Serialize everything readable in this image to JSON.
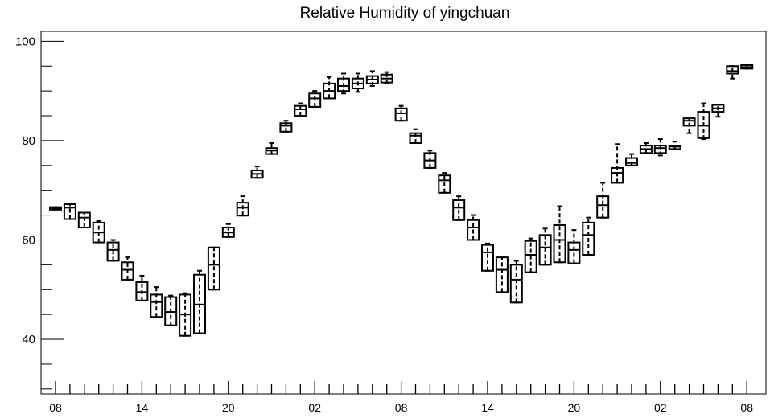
{
  "chart_data": {
    "type": "box",
    "title": "Relative Humidity of yingchuan",
    "xlabel": "",
    "ylabel": "",
    "ylim": [
      29,
      102
    ],
    "yticks": [
      40,
      60,
      80,
      100
    ],
    "x_tick_labels": [
      "08",
      "14",
      "20",
      "02",
      "08",
      "14",
      "20",
      "02",
      "08"
    ],
    "x_tick_label_steps": [
      0,
      6,
      12,
      18,
      24,
      30,
      36,
      42,
      48
    ],
    "step_hours": 1,
    "boxes": [
      {
        "step": 0,
        "whislo": 66.1,
        "q1": 66.1,
        "med": 66.3,
        "q3": 66.6,
        "whishi": 66.6
      },
      {
        "step": 1,
        "whislo": 64.2,
        "q1": 64.2,
        "med": 66.5,
        "q3": 67.2,
        "whishi": 67.2
      },
      {
        "step": 2,
        "whislo": 62.5,
        "q1": 62.5,
        "med": 64.5,
        "q3": 65.5,
        "whishi": 65.5
      },
      {
        "step": 3,
        "whislo": 59.5,
        "q1": 59.5,
        "med": 61.5,
        "q3": 63.5,
        "whishi": 63.8
      },
      {
        "step": 4,
        "whislo": 55.8,
        "q1": 55.8,
        "med": 58.0,
        "q3": 59.5,
        "whishi": 60.0
      },
      {
        "step": 5,
        "whislo": 52.0,
        "q1": 52.0,
        "med": 54.0,
        "q3": 55.5,
        "whishi": 56.5
      },
      {
        "step": 6,
        "whislo": 47.8,
        "q1": 47.8,
        "med": 49.5,
        "q3": 51.5,
        "whishi": 52.8
      },
      {
        "step": 7,
        "whislo": 44.5,
        "q1": 44.5,
        "med": 47.5,
        "q3": 49.0,
        "whishi": 50.5
      },
      {
        "step": 8,
        "whislo": 42.8,
        "q1": 42.8,
        "med": 45.5,
        "q3": 48.5,
        "whishi": 48.8
      },
      {
        "step": 9,
        "whislo": 40.7,
        "q1": 40.7,
        "med": 45.0,
        "q3": 49.0,
        "whishi": 49.3
      },
      {
        "step": 10,
        "whislo": 41.2,
        "q1": 41.2,
        "med": 47.0,
        "q3": 53.0,
        "whishi": 53.8
      },
      {
        "step": 11,
        "whislo": 50.0,
        "q1": 50.0,
        "med": 55.0,
        "q3": 58.5,
        "whishi": 58.5
      },
      {
        "step": 12,
        "whislo": 60.6,
        "q1": 60.6,
        "med": 61.5,
        "q3": 62.5,
        "whishi": 63.2
      },
      {
        "step": 13,
        "whislo": 64.9,
        "q1": 64.9,
        "med": 66.5,
        "q3": 67.5,
        "whishi": 68.8
      },
      {
        "step": 14,
        "whislo": 72.5,
        "q1": 72.5,
        "med": 73.3,
        "q3": 74.0,
        "whishi": 74.8
      },
      {
        "step": 15,
        "whislo": 77.3,
        "q1": 77.3,
        "med": 78.0,
        "q3": 78.5,
        "whishi": 79.5
      },
      {
        "step": 16,
        "whislo": 81.8,
        "q1": 81.8,
        "med": 83.0,
        "q3": 83.5,
        "whishi": 84.0
      },
      {
        "step": 17,
        "whislo": 85.0,
        "q1": 85.0,
        "med": 86.3,
        "q3": 87.0,
        "whishi": 87.5
      },
      {
        "step": 18,
        "whislo": 86.8,
        "q1": 86.8,
        "med": 88.5,
        "q3": 89.5,
        "whishi": 90.0
      },
      {
        "step": 19,
        "whislo": 88.5,
        "q1": 88.5,
        "med": 90.0,
        "q3": 91.5,
        "whishi": 92.8
      },
      {
        "step": 20,
        "whislo": 89.5,
        "q1": 90.0,
        "med": 91.0,
        "q3": 92.5,
        "whishi": 93.5
      },
      {
        "step": 21,
        "whislo": 89.8,
        "q1": 90.5,
        "med": 91.5,
        "q3": 92.5,
        "whishi": 93.5
      },
      {
        "step": 22,
        "whislo": 91.0,
        "q1": 91.5,
        "med": 92.3,
        "q3": 93.0,
        "whishi": 94.0
      },
      {
        "step": 23,
        "whislo": 91.5,
        "q1": 91.7,
        "med": 92.5,
        "q3": 93.3,
        "whishi": 93.8
      },
      {
        "step": 24,
        "whislo": 84.0,
        "q1": 84.0,
        "med": 85.5,
        "q3": 86.5,
        "whishi": 87.0
      },
      {
        "step": 25,
        "whislo": 79.5,
        "q1": 79.5,
        "med": 81.0,
        "q3": 81.5,
        "whishi": 82.3
      },
      {
        "step": 26,
        "whislo": 74.5,
        "q1": 74.5,
        "med": 76.0,
        "q3": 77.5,
        "whishi": 78.0
      },
      {
        "step": 27,
        "whislo": 69.5,
        "q1": 69.5,
        "med": 72.0,
        "q3": 73.0,
        "whishi": 73.5
      },
      {
        "step": 28,
        "whislo": 64.0,
        "q1": 64.0,
        "med": 66.5,
        "q3": 68.0,
        "whishi": 68.8
      },
      {
        "step": 29,
        "whislo": 60.0,
        "q1": 60.0,
        "med": 62.5,
        "q3": 64.0,
        "whishi": 65.0
      },
      {
        "step": 30,
        "whislo": 53.8,
        "q1": 53.8,
        "med": 57.5,
        "q3": 59.0,
        "whishi": 59.3
      },
      {
        "step": 31,
        "whislo": 49.5,
        "q1": 49.5,
        "med": 54.0,
        "q3": 56.5,
        "whishi": 56.5
      },
      {
        "step": 32,
        "whislo": 47.4,
        "q1": 47.4,
        "med": 52.0,
        "q3": 55.0,
        "whishi": 55.8
      },
      {
        "step": 33,
        "whislo": 53.5,
        "q1": 53.5,
        "med": 57.0,
        "q3": 59.8,
        "whishi": 60.3
      },
      {
        "step": 34,
        "whislo": 55.0,
        "q1": 55.0,
        "med": 58.5,
        "q3": 61.0,
        "whishi": 62.3
      },
      {
        "step": 35,
        "whislo": 55.5,
        "q1": 55.5,
        "med": 60.0,
        "q3": 63.0,
        "whishi": 66.8
      },
      {
        "step": 36,
        "whislo": 55.3,
        "q1": 55.3,
        "med": 58.0,
        "q3": 59.5,
        "whishi": 62.0
      },
      {
        "step": 37,
        "whislo": 57.0,
        "q1": 57.0,
        "med": 61.0,
        "q3": 63.5,
        "whishi": 64.5
      },
      {
        "step": 38,
        "whislo": 64.5,
        "q1": 64.5,
        "med": 67.0,
        "q3": 68.8,
        "whishi": 71.5
      },
      {
        "step": 39,
        "whislo": 71.5,
        "q1": 71.5,
        "med": 73.5,
        "q3": 74.5,
        "whishi": 79.3
      },
      {
        "step": 40,
        "whislo": 75.0,
        "q1": 75.0,
        "med": 75.5,
        "q3": 76.5,
        "whishi": 77.3
      },
      {
        "step": 41,
        "whislo": 77.5,
        "q1": 77.5,
        "med": 78.3,
        "q3": 79.0,
        "whishi": 79.5
      },
      {
        "step": 42,
        "whislo": 77.0,
        "q1": 77.5,
        "med": 78.5,
        "q3": 79.0,
        "whishi": 80.3
      },
      {
        "step": 43,
        "whislo": 78.3,
        "q1": 78.3,
        "med": 78.8,
        "q3": 79.0,
        "whishi": 79.8
      },
      {
        "step": 44,
        "whislo": 81.5,
        "q1": 83.0,
        "med": 84.0,
        "q3": 84.5,
        "whishi": 84.5
      },
      {
        "step": 45,
        "whislo": 80.3,
        "q1": 80.5,
        "med": 83.0,
        "q3": 85.8,
        "whishi": 87.5
      },
      {
        "step": 46,
        "whislo": 84.8,
        "q1": 85.8,
        "med": 86.5,
        "q3": 87.2,
        "whishi": 87.2
      },
      {
        "step": 47,
        "whislo": 92.5,
        "q1": 93.5,
        "med": 94.0,
        "q3": 95.0,
        "whishi": 95.0
      },
      {
        "step": 48,
        "whislo": 94.5,
        "q1": 94.5,
        "med": 94.8,
        "q3": 95.2,
        "whishi": 95.3
      }
    ],
    "grid": false,
    "legend": "none"
  }
}
